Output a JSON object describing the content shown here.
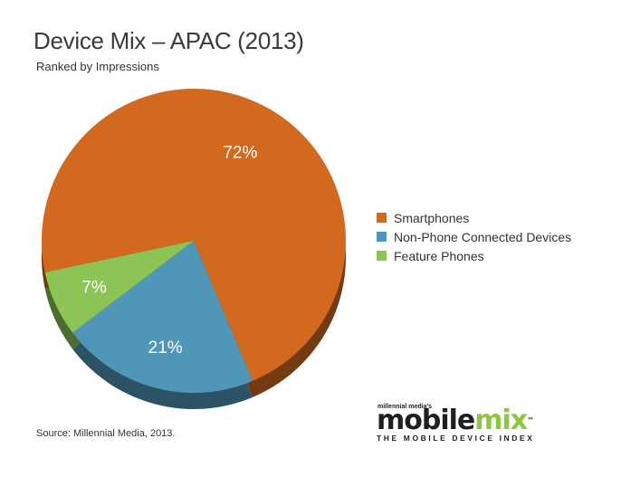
{
  "chart_data": {
    "type": "pie",
    "title": "Device Mix – APAC (2013)",
    "subtitle": "Ranked by Impressions",
    "slices": [
      {
        "label": "Smartphones",
        "value": 72,
        "display": "72%",
        "color": "#d2691e"
      },
      {
        "label": "Non-Phone Connected Devices",
        "value": 21,
        "display": "21%",
        "color": "#4f96b8"
      },
      {
        "label": "Feature Phones",
        "value": 7,
        "display": "7%",
        "color": "#8cc455"
      }
    ],
    "legend_position": "right",
    "source": "Source: Millennial Media, 2013."
  },
  "brand": {
    "small": "millennial media's",
    "main_part1": "mobile",
    "main_part2": "mix",
    "tm": "™",
    "tagline": "THE MOBILE DEVICE INDEX"
  }
}
